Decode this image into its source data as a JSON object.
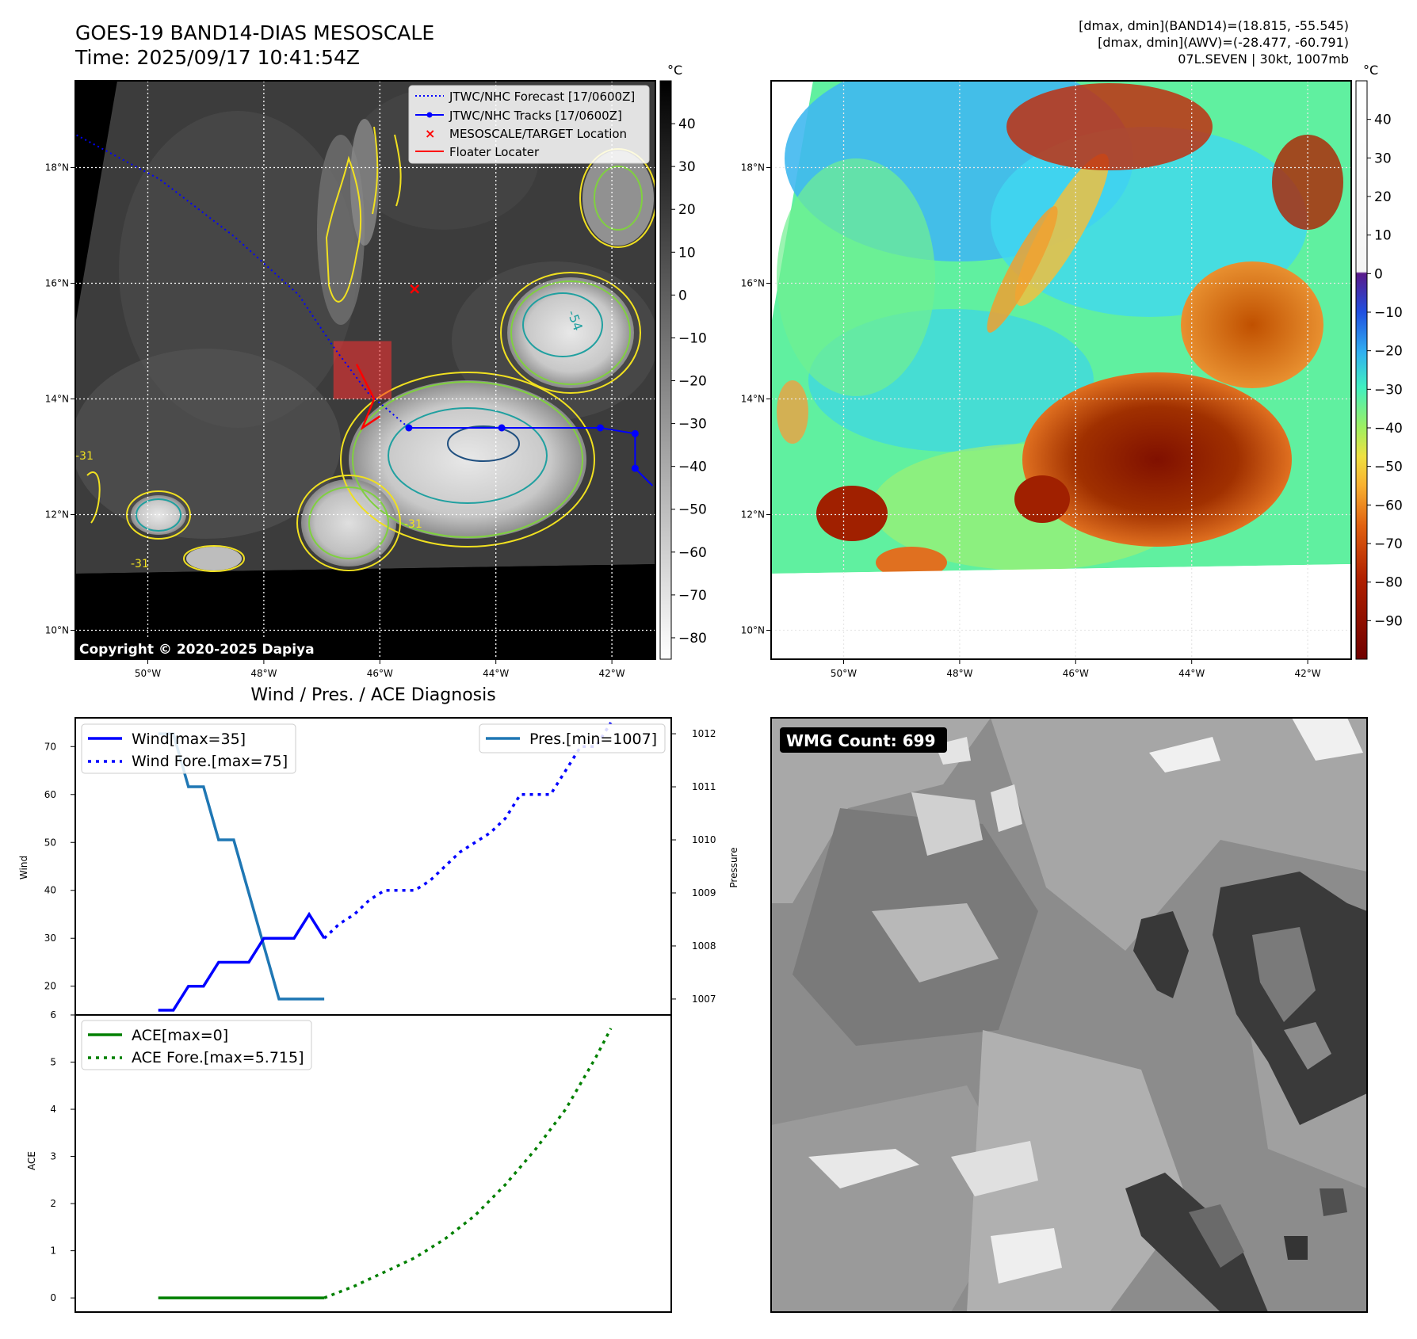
{
  "header": {
    "title": "GOES-19 BAND14-DIAS MESOSCALE",
    "time": "Time: 2025/09/17 10:41:54Z",
    "stats_line1": "[dmax, dmin](BAND14)=(18.815, -55.545)",
    "stats_line2": "[dmax, dmin](AWV)=(-28.477, -60.791)",
    "stats_line3": "07L.SEVEN | 30kt, 1007mb"
  },
  "copyright": "Copyright © 2020-2025 Dapiya",
  "map": {
    "lon_labels": [
      "50°W",
      "48°W",
      "46°W",
      "44°W",
      "42°W"
    ],
    "lon_values": [
      -50,
      -48,
      -46,
      -44,
      -42
    ],
    "lat_labels": [
      "18°N",
      "16°N",
      "14°N",
      "12°N",
      "10°N"
    ],
    "lat_values": [
      18,
      16,
      14,
      12,
      10
    ],
    "lon_range": [
      -51.25,
      -41.25
    ],
    "lat_range": [
      9.5,
      19.5
    ],
    "contour_labels": [
      "-54",
      "-31",
      "-31",
      "-31"
    ],
    "legend": [
      {
        "label": "JTWC/NHC Forecast [17/0600Z]",
        "color": "#0000ff",
        "style": "dotted"
      },
      {
        "label": "JTWC/NHC Tracks [17/0600Z]",
        "color": "#0000ff",
        "style": "line-marker"
      },
      {
        "label": "MESOSCALE/TARGET Location",
        "color": "#ff0000",
        "style": "x"
      },
      {
        "label": "Floater Locater",
        "color": "#ff0000",
        "style": "line"
      }
    ],
    "forecast_track": [
      [
        -51.3,
        18.6
      ],
      [
        -49.8,
        17.8
      ],
      [
        -48.5,
        16.8
      ],
      [
        -47.4,
        15.8
      ],
      [
        -46.8,
        14.9
      ],
      [
        -46.2,
        14.1
      ],
      [
        -45.5,
        13.5
      ]
    ],
    "best_track": [
      [
        -45.5,
        13.5
      ],
      [
        -43.9,
        13.5
      ],
      [
        -42.2,
        13.5
      ],
      [
        -41.6,
        13.4
      ],
      [
        -41.6,
        12.8
      ],
      [
        -41.3,
        12.5
      ]
    ],
    "target_location": [
      -45.4,
      15.9
    ],
    "floater_box": [
      [
        -46.8,
        14.0
      ],
      [
        -45.8,
        15.0
      ]
    ],
    "floater_locater": [
      [
        -46.4,
        14.6
      ],
      [
        -46.1,
        14.0
      ],
      [
        -46.3,
        13.5
      ],
      [
        -46.0,
        13.7
      ]
    ]
  },
  "colorbar_left": {
    "unit": "°C",
    "ticks": [
      "40",
      "30",
      "20",
      "10",
      "0",
      "−10",
      "−20",
      "−30",
      "−40",
      "−50",
      "−60",
      "−70",
      "−80"
    ],
    "range": [
      -85,
      50
    ],
    "colormap": "gray (white = cold, black = warm)"
  },
  "colorbar_right": {
    "unit": "°C",
    "ticks": [
      "40",
      "30",
      "20",
      "10",
      "0",
      "−10",
      "−20",
      "−30",
      "−40",
      "−50",
      "−60",
      "−70",
      "−80",
      "−90"
    ],
    "range": [
      -100,
      50
    ],
    "colormap": "white above 0, purple-blue-cyan-green-yellow-orange-red-darkred below 0"
  },
  "wmg": {
    "label": "WMG Count: 699"
  },
  "diagnosis": {
    "title": "Wind / Pres. / ACE Diagnosis",
    "wind_ylabel": "Wind",
    "pres_ylabel": "Pressure",
    "ace_ylabel": "ACE",
    "legend_wind": "Wind[max=35]",
    "legend_wind_fore": "Wind Fore.[max=75]",
    "legend_pres": "Pres.[min=1007]",
    "legend_ace": "ACE[max=0]",
    "legend_ace_fore": "ACE Fore.[max=5.715]"
  },
  "chart_data": [
    {
      "type": "line",
      "title": "Wind / Pres. / ACE Diagnosis",
      "ylabel": "Wind",
      "y2label": "Pressure",
      "ylim": [
        14,
        76
      ],
      "y2lim": [
        1006.7,
        1012.3
      ],
      "yticks": [
        20,
        30,
        40,
        50,
        60,
        70
      ],
      "y2ticks": [
        1007,
        1008,
        1009,
        1010,
        1011,
        1012
      ],
      "xlim": [
        -5.5,
        34
      ],
      "series": [
        {
          "name": "Wind[max=35]",
          "color": "#0000ff",
          "style": "solid",
          "x": [
            0,
            1,
            2,
            3,
            4,
            5,
            6,
            7,
            8,
            9,
            10,
            11
          ],
          "values": [
            15,
            15,
            20,
            20,
            25,
            25,
            25,
            30,
            30,
            30,
            35,
            30
          ]
        },
        {
          "name": "Wind Fore.[max=75]",
          "color": "#0000ff",
          "style": "dotted",
          "x": [
            11,
            12,
            13,
            14,
            15,
            16,
            17,
            18,
            19,
            20,
            21,
            22,
            23,
            24,
            25,
            26,
            27,
            28,
            29,
            30
          ],
          "values": [
            30,
            33,
            35,
            38,
            40,
            40,
            40,
            42,
            45,
            48,
            50,
            52,
            55,
            60,
            60,
            60,
            65,
            70,
            70,
            75
          ]
        },
        {
          "name": "Pres.[min=1007]",
          "color": "#1f77b4",
          "style": "solid",
          "axis": "right",
          "x": [
            0,
            1,
            2,
            3,
            4,
            5,
            6,
            7,
            8,
            9,
            10,
            11
          ],
          "values": [
            1012,
            1012,
            1011,
            1011,
            1010,
            1010,
            1009,
            1008,
            1007,
            1007,
            1007,
            1007
          ]
        }
      ]
    },
    {
      "type": "line",
      "ylabel": "ACE",
      "ylim": [
        -0.3,
        6
      ],
      "yticks": [
        0,
        1,
        2,
        3,
        4,
        5,
        6
      ],
      "xlim": [
        -5.5,
        34
      ],
      "series": [
        {
          "name": "ACE[max=0]",
          "color": "#008000",
          "style": "solid",
          "x": [
            0,
            11
          ],
          "values": [
            0,
            0
          ]
        },
        {
          "name": "ACE Fore.[max=5.715]",
          "color": "#008000",
          "style": "dotted",
          "x": [
            11,
            13,
            15,
            17,
            19,
            21,
            23,
            25,
            27,
            29,
            30
          ],
          "values": [
            0,
            0.25,
            0.55,
            0.85,
            1.25,
            1.75,
            2.4,
            3.15,
            4.0,
            5.1,
            5.715
          ]
        }
      ]
    }
  ]
}
